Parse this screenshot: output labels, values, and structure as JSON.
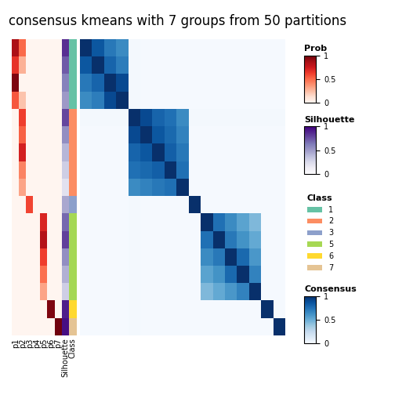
{
  "chart_data": {
    "type": "heatmap",
    "title": "consensus kmeans with 7 groups from 50 partitions",
    "probability": {
      "name": "Prob",
      "columns": [
        "p1",
        "p2",
        "p3",
        "p4",
        "p5",
        "p6",
        "p7"
      ],
      "cells": [
        [
          0.85,
          0.5,
          0.0,
          0.0,
          0.0,
          0.0,
          0.0
        ],
        [
          0.65,
          0.28,
          0.0,
          0.0,
          0.0,
          0.0,
          0.0
        ],
        [
          0.95,
          0.0,
          0.0,
          0.0,
          0.0,
          0.0,
          0.0
        ],
        [
          0.55,
          0.22,
          0.0,
          0.0,
          0.0,
          0.0,
          0.0
        ],
        [
          0.0,
          0.62,
          0.0,
          0.0,
          0.0,
          0.0,
          0.0
        ],
        [
          0.0,
          0.52,
          0.0,
          0.0,
          0.0,
          0.0,
          0.0
        ],
        [
          0.0,
          0.72,
          0.0,
          0.0,
          0.0,
          0.0,
          0.0
        ],
        [
          0.0,
          0.42,
          0.0,
          0.0,
          0.0,
          0.0,
          0.0
        ],
        [
          0.0,
          0.32,
          0.0,
          0.0,
          0.0,
          0.0,
          0.0
        ],
        [
          0.0,
          0.0,
          0.6,
          0.0,
          0.0,
          0.0,
          0.0
        ],
        [
          0.0,
          0.0,
          0.0,
          0.0,
          0.7,
          0.0,
          0.0
        ],
        [
          0.0,
          0.0,
          0.0,
          0.0,
          0.82,
          0.0,
          0.0
        ],
        [
          0.0,
          0.0,
          0.0,
          0.0,
          0.62,
          0.0,
          0.0
        ],
        [
          0.0,
          0.0,
          0.0,
          0.0,
          0.48,
          0.0,
          0.0
        ],
        [
          0.0,
          0.0,
          0.0,
          0.0,
          0.32,
          0.0,
          0.0
        ],
        [
          0.0,
          0.0,
          0.0,
          0.0,
          0.0,
          0.95,
          0.0
        ],
        [
          0.0,
          0.0,
          0.0,
          0.0,
          0.0,
          0.0,
          0.98
        ]
      ],
      "range": [
        0,
        1
      ],
      "ticks": [
        0,
        0.5,
        1
      ]
    },
    "silhouette": {
      "name": "Silhouette",
      "values": [
        0.85,
        0.72,
        0.6,
        0.5,
        0.78,
        0.55,
        0.4,
        0.3,
        0.2,
        0.45,
        0.68,
        0.8,
        0.55,
        0.42,
        0.3,
        0.9,
        0.95
      ],
      "range": [
        0,
        1
      ],
      "ticks": [
        0,
        0.5,
        1
      ]
    },
    "class": {
      "name": "Class",
      "values": [
        "1",
        "1",
        "1",
        "1",
        "2",
        "2",
        "2",
        "2",
        "2",
        "3",
        "5",
        "5",
        "5",
        "5",
        "5",
        "6",
        "7"
      ],
      "series": [
        {
          "name": "1",
          "color": "#66c2a5"
        },
        {
          "name": "2",
          "color": "#fc8d62"
        },
        {
          "name": "3",
          "color": "#8da0cb"
        },
        {
          "name": "5",
          "color": "#a6d854"
        },
        {
          "name": "6",
          "color": "#ffd92f"
        },
        {
          "name": "7",
          "color": "#e5c494"
        }
      ]
    },
    "consensus": {
      "name": "Consensus",
      "cells": [
        [
          1.0,
          0.85,
          0.72,
          0.65,
          0.02,
          0.01,
          0.01,
          0.01,
          0.01,
          0.01,
          0.01,
          0.01,
          0.01,
          0.01,
          0.01,
          0.01,
          0.01
        ],
        [
          0.85,
          1.0,
          0.8,
          0.7,
          0.02,
          0.01,
          0.01,
          0.01,
          0.01,
          0.01,
          0.01,
          0.01,
          0.01,
          0.01,
          0.01,
          0.01,
          0.01
        ],
        [
          0.72,
          0.8,
          1.0,
          0.9,
          0.02,
          0.01,
          0.01,
          0.01,
          0.01,
          0.01,
          0.01,
          0.01,
          0.01,
          0.01,
          0.01,
          0.01,
          0.01
        ],
        [
          0.65,
          0.7,
          0.9,
          1.0,
          0.02,
          0.01,
          0.01,
          0.01,
          0.01,
          0.01,
          0.01,
          0.01,
          0.01,
          0.01,
          0.01,
          0.01,
          0.01
        ],
        [
          0.02,
          0.02,
          0.02,
          0.02,
          1.0,
          0.9,
          0.8,
          0.75,
          0.65,
          0.02,
          0.02,
          0.02,
          0.02,
          0.02,
          0.02,
          0.02,
          0.02
        ],
        [
          0.01,
          0.01,
          0.01,
          0.01,
          0.9,
          1.0,
          0.85,
          0.78,
          0.68,
          0.01,
          0.01,
          0.01,
          0.01,
          0.01,
          0.01,
          0.01,
          0.01
        ],
        [
          0.01,
          0.01,
          0.01,
          0.01,
          0.8,
          0.85,
          1.0,
          0.82,
          0.72,
          0.01,
          0.01,
          0.01,
          0.01,
          0.01,
          0.01,
          0.01,
          0.01
        ],
        [
          0.01,
          0.01,
          0.01,
          0.01,
          0.75,
          0.78,
          0.82,
          1.0,
          0.75,
          0.01,
          0.01,
          0.01,
          0.01,
          0.01,
          0.01,
          0.01,
          0.01
        ],
        [
          0.01,
          0.01,
          0.01,
          0.01,
          0.65,
          0.68,
          0.72,
          0.75,
          1.0,
          0.01,
          0.01,
          0.01,
          0.01,
          0.01,
          0.01,
          0.01,
          0.01
        ],
        [
          0.01,
          0.01,
          0.01,
          0.01,
          0.02,
          0.01,
          0.01,
          0.01,
          0.01,
          1.0,
          0.01,
          0.01,
          0.01,
          0.01,
          0.01,
          0.01,
          0.01
        ],
        [
          0.01,
          0.01,
          0.01,
          0.01,
          0.02,
          0.01,
          0.01,
          0.01,
          0.01,
          0.01,
          1.0,
          0.75,
          0.65,
          0.55,
          0.45,
          0.01,
          0.01
        ],
        [
          0.01,
          0.01,
          0.01,
          0.01,
          0.02,
          0.01,
          0.01,
          0.01,
          0.01,
          0.01,
          0.75,
          1.0,
          0.72,
          0.62,
          0.52,
          0.01,
          0.01
        ],
        [
          0.01,
          0.01,
          0.01,
          0.01,
          0.02,
          0.01,
          0.01,
          0.01,
          0.01,
          0.01,
          0.65,
          0.72,
          1.0,
          0.78,
          0.6,
          0.01,
          0.01
        ],
        [
          0.01,
          0.01,
          0.01,
          0.01,
          0.02,
          0.01,
          0.01,
          0.01,
          0.01,
          0.01,
          0.55,
          0.62,
          0.78,
          1.0,
          0.68,
          0.01,
          0.01
        ],
        [
          0.01,
          0.01,
          0.01,
          0.01,
          0.02,
          0.01,
          0.01,
          0.01,
          0.01,
          0.01,
          0.45,
          0.52,
          0.6,
          0.68,
          1.0,
          0.01,
          0.01
        ],
        [
          0.01,
          0.01,
          0.01,
          0.01,
          0.02,
          0.01,
          0.01,
          0.01,
          0.01,
          0.01,
          0.01,
          0.01,
          0.01,
          0.01,
          0.01,
          1.0,
          0.01
        ],
        [
          0.01,
          0.01,
          0.01,
          0.01,
          0.02,
          0.01,
          0.01,
          0.01,
          0.01,
          0.01,
          0.01,
          0.01,
          0.01,
          0.01,
          0.01,
          0.01,
          1.0
        ]
      ],
      "range": [
        0,
        1
      ],
      "ticks": [
        0,
        0.5,
        1
      ]
    }
  }
}
